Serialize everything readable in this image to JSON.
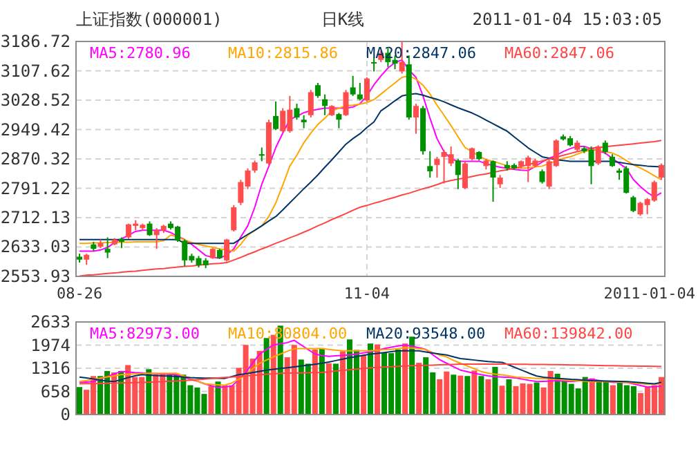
{
  "chart_data": [
    {
      "type": "candlestick",
      "title": "上证指数(000001)",
      "subtitle": "日K线",
      "annotations": [
        "2011-01-04 15:03:05"
      ],
      "categories": [
        "08-26",
        null,
        null,
        null,
        null,
        null,
        null,
        null,
        null,
        null,
        null,
        null,
        null,
        null,
        null,
        null,
        null,
        null,
        null,
        null,
        null,
        null,
        null,
        null,
        null,
        null,
        null,
        null,
        null,
        null,
        null,
        null,
        null,
        null,
        null,
        null,
        null,
        null,
        null,
        null,
        null,
        "11-04",
        null,
        null,
        null,
        null,
        null,
        null,
        null,
        null,
        null,
        null,
        null,
        null,
        null,
        null,
        null,
        null,
        null,
        null,
        null,
        null,
        null,
        null,
        null,
        null,
        null,
        null,
        null,
        null,
        null,
        null,
        null,
        null,
        null,
        null,
        null,
        null,
        null,
        null,
        null,
        null,
        null,
        "2011-01-04"
      ],
      "ylim": [
        2553.93,
        3186.72
      ],
      "yticks": [
        2553.93,
        2633.03,
        2712.13,
        2791.22,
        2870.32,
        2949.42,
        3028.52,
        3107.62,
        3186.72
      ],
      "grid": true,
      "legend": "top",
      "ohlc": [
        [
          2607,
          2615,
          2591,
          2599
        ],
        [
          2599,
          2615,
          2585,
          2612
        ],
        [
          2640,
          2647,
          2622,
          2628
        ],
        [
          2634,
          2653,
          2630,
          2644
        ],
        [
          2628,
          2659,
          2603,
          2618
        ],
        [
          2640,
          2657,
          2638,
          2653
        ],
        [
          2655,
          2659,
          2630,
          2647
        ],
        [
          2659,
          2696,
          2655,
          2694
        ],
        [
          2690,
          2705,
          2678,
          2696
        ],
        [
          2684,
          2696,
          2678,
          2693
        ],
        [
          2696,
          2702,
          2663,
          2665
        ],
        [
          2665,
          2684,
          2628,
          2678
        ],
        [
          2678,
          2693,
          2671,
          2690
        ],
        [
          2696,
          2702,
          2680,
          2684
        ],
        [
          2688,
          2690,
          2647,
          2650
        ],
        [
          2650,
          2653,
          2581,
          2597
        ],
        [
          2609,
          2615,
          2591,
          2597
        ],
        [
          2603,
          2609,
          2578,
          2584
        ],
        [
          2597,
          2603,
          2576,
          2584
        ],
        [
          2603,
          2630,
          2601,
          2628
        ],
        [
          2625,
          2628,
          2601,
          2603
        ],
        [
          2597,
          2655,
          2594,
          2653
        ],
        [
          2678,
          2746,
          2675,
          2740
        ],
        [
          2752,
          2814,
          2746,
          2808
        ],
        [
          2796,
          2845,
          2789,
          2839
        ],
        [
          2839,
          2866,
          2833,
          2861
        ],
        [
          2883,
          2901,
          2864,
          2879
        ],
        [
          2858,
          2976,
          2854,
          2969
        ],
        [
          2986,
          3025,
          2948,
          2951
        ],
        [
          2945,
          3007,
          2941,
          3000
        ],
        [
          2945,
          3040,
          2941,
          3003
        ],
        [
          3007,
          3019,
          2976,
          2982
        ],
        [
          2976,
          2988,
          2953,
          2969
        ],
        [
          2988,
          3056,
          2982,
          3050
        ],
        [
          3069,
          3075,
          3035,
          3040
        ],
        [
          3031,
          3044,
          2988,
          3013
        ],
        [
          2988,
          3015,
          2986,
          3013
        ],
        [
          2991,
          2994,
          2953,
          2976
        ],
        [
          2988,
          3056,
          2986,
          3050
        ],
        [
          3063,
          3094,
          3040,
          3044
        ],
        [
          3044,
          3075,
          3028,
          3031
        ],
        [
          3028,
          3090,
          3025,
          3087
        ],
        [
          3131,
          3143,
          3106,
          3128
        ],
        [
          3137,
          3162,
          3131,
          3156
        ],
        [
          3156,
          3168,
          3118,
          3131
        ],
        [
          3137,
          3149,
          3112,
          3127
        ],
        [
          3106,
          3186,
          3100,
          3131
        ],
        [
          3125,
          3149,
          2976,
          2982
        ],
        [
          2982,
          3019,
          2938,
          3013
        ],
        [
          3007,
          3013,
          2882,
          2891
        ],
        [
          2851,
          2891,
          2820,
          2837
        ],
        [
          2854,
          2876,
          2820,
          2870
        ],
        [
          2876,
          2895,
          2804,
          2889
        ],
        [
          2858,
          2904,
          2851,
          2883
        ],
        [
          2866,
          2870,
          2789,
          2827
        ],
        [
          2792,
          2864,
          2789,
          2858
        ],
        [
          2870,
          2901,
          2866,
          2899
        ],
        [
          2889,
          2891,
          2866,
          2870
        ],
        [
          2851,
          2870,
          2842,
          2866
        ],
        [
          2864,
          2866,
          2755,
          2820
        ],
        [
          2802,
          2827,
          2792,
          2820
        ],
        [
          2854,
          2864,
          2839,
          2845
        ],
        [
          2854,
          2858,
          2842,
          2845
        ],
        [
          2851,
          2866,
          2845,
          2864
        ],
        [
          2851,
          2879,
          2808,
          2874
        ],
        [
          2851,
          2870,
          2848,
          2866
        ],
        [
          2837,
          2842,
          2804,
          2808
        ],
        [
          2796,
          2870,
          2789,
          2864
        ],
        [
          2851,
          2923,
          2849,
          2920
        ],
        [
          2931,
          2936,
          2920,
          2923
        ],
        [
          2926,
          2932,
          2904,
          2907
        ],
        [
          2895,
          2920,
          2891,
          2914
        ],
        [
          2899,
          2904,
          2886,
          2891
        ],
        [
          2895,
          2904,
          2802,
          2851
        ],
        [
          2858,
          2907,
          2854,
          2904
        ],
        [
          2914,
          2920,
          2883,
          2889
        ],
        [
          2876,
          2883,
          2849,
          2851
        ],
        [
          2839,
          2845,
          2814,
          2833
        ],
        [
          2845,
          2851,
          2777,
          2779
        ],
        [
          2767,
          2771,
          2727,
          2730
        ],
        [
          2721,
          2755,
          2717,
          2752
        ],
        [
          2746,
          2765,
          2721,
          2762
        ],
        [
          2758,
          2812,
          2755,
          2808
        ],
        [
          2820,
          2858,
          2814,
          2854
        ]
      ],
      "colors": [
        "#009100",
        "#ff4d4d",
        "#009100",
        "#ff4d4d",
        "#009100",
        "#ff4d4d",
        "#009100",
        "#ff4d4d",
        "#ff4d4d",
        "#ff4d4d",
        "#009100",
        "#ff4d4d",
        "#ff4d4d",
        "#009100",
        "#009100",
        "#009100",
        "#009100",
        "#009100",
        "#009100",
        "#ff4d4d",
        "#009100",
        "#ff4d4d",
        "#ff4d4d",
        "#ff4d4d",
        "#ff4d4d",
        "#ff4d4d",
        "#009100",
        "#ff4d4d",
        "#009100",
        "#ff4d4d",
        "#ff4d4d",
        "#009100",
        "#009100",
        "#ff4d4d",
        "#009100",
        "#009100",
        "#ff4d4d",
        "#009100",
        "#ff4d4d",
        "#009100",
        "#009100",
        "#ff4d4d",
        "#009100",
        "#ff4d4d",
        "#009100",
        "#009100",
        "#ff4d4d",
        "#009100",
        "#ff4d4d",
        "#009100",
        "#009100",
        "#ff4d4d",
        "#ff4d4d",
        "#ff4d4d",
        "#009100",
        "#ff4d4d",
        "#ff4d4d",
        "#009100",
        "#ff4d4d",
        "#009100",
        "#ff4d4d",
        "#009100",
        "#009100",
        "#ff4d4d",
        "#ff4d4d",
        "#ff4d4d",
        "#009100",
        "#ff4d4d",
        "#ff4d4d",
        "#009100",
        "#009100",
        "#ff4d4d",
        "#009100",
        "#009100",
        "#ff4d4d",
        "#009100",
        "#009100",
        "#009100",
        "#009100",
        "#009100",
        "#ff4d4d",
        "#ff4d4d",
        "#ff4d4d",
        "#ff4d4d"
      ],
      "series": [
        {
          "name": "MA5:2780.96",
          "type": "line",
          "color": "#ff00ff",
          "values": [
            2622,
            2622,
            2622,
            2625,
            2632,
            2645,
            2655,
            2665,
            2675,
            2678,
            2678,
            2678,
            2678,
            2672,
            2662,
            2653,
            2640,
            2625,
            2610,
            2605,
            2603,
            2612,
            2628,
            2660,
            2690,
            2740,
            2802,
            2850,
            2901,
            2940,
            2976,
            2985,
            2995,
            3000,
            3004,
            3007,
            3007,
            3007,
            3007,
            3010,
            3019,
            3040,
            3070,
            3094,
            3115,
            3130,
            3137,
            3110,
            3090,
            3040,
            2980,
            2925,
            2890,
            2870,
            2864,
            2864,
            2864,
            2864,
            2858,
            2852,
            2848,
            2845,
            2842,
            2840,
            2839,
            2850,
            2862,
            2872,
            2880,
            2890,
            2898,
            2904,
            2904,
            2898,
            2892,
            2886,
            2872,
            2858,
            2845,
            2815,
            2796,
            2780,
            2768,
            2779
          ]
        },
        {
          "name": "MA10:2815.86",
          "type": "line",
          "color": "#ffa500",
          "values": [
            2643,
            2643,
            2644,
            2644,
            2645,
            2645,
            2646,
            2646,
            2647,
            2647,
            2647,
            2647,
            2650,
            2665,
            2660,
            2652,
            2645,
            2640,
            2636,
            2632,
            2628,
            2625,
            2622,
            2640,
            2665,
            2678,
            2690,
            2715,
            2752,
            2800,
            2851,
            2880,
            2914,
            2940,
            2963,
            2980,
            3000,
            3007,
            3013,
            3015,
            3018,
            3022,
            3030,
            3045,
            3060,
            3075,
            3090,
            3094,
            3085,
            3069,
            3045,
            3015,
            2988,
            2960,
            2930,
            2901,
            2890,
            2878,
            2868,
            2864,
            2858,
            2852,
            2847,
            2845,
            2846,
            2849,
            2851,
            2858,
            2865,
            2872,
            2876,
            2883,
            2890,
            2895,
            2893,
            2890,
            2886,
            2878,
            2866,
            2855,
            2846,
            2836,
            2825,
            2814
          ]
        },
        {
          "name": "MA20:2847.06",
          "type": "line",
          "color": "#003366",
          "values": [
            2653,
            2653,
            2653,
            2653,
            2653,
            2653,
            2653,
            2653,
            2653,
            2653,
            2653,
            2653,
            2653,
            2653,
            2653,
            2643,
            2643,
            2643,
            2643,
            2643,
            2643,
            2643,
            2643,
            2655,
            2667,
            2678,
            2690,
            2703,
            2715,
            2733,
            2752,
            2771,
            2790,
            2808,
            2827,
            2848,
            2868,
            2889,
            2910,
            2925,
            2938,
            2955,
            2970,
            3000,
            3013,
            3027,
            3040,
            3044,
            3046,
            3042,
            3036,
            3031,
            3024,
            3016,
            3008,
            3001,
            2994,
            2985,
            2975,
            2965,
            2955,
            2945,
            2930,
            2915,
            2900,
            2888,
            2876,
            2872,
            2868,
            2866,
            2864,
            2864,
            2864,
            2864,
            2864,
            2864,
            2864,
            2861,
            2858,
            2855,
            2853,
            2851,
            2850,
            2849
          ]
        },
        {
          "name": "MA60:2847.06",
          "type": "line",
          "color": "#ff4444",
          "values": [
            2555,
            2557,
            2558,
            2560,
            2562,
            2563,
            2565,
            2567,
            2568,
            2570,
            2572,
            2574,
            2575,
            2577,
            2579,
            2581,
            2582,
            2584,
            2586,
            2588,
            2589,
            2591,
            2598,
            2605,
            2613,
            2620,
            2628,
            2635,
            2643,
            2650,
            2658,
            2665,
            2673,
            2681,
            2690,
            2698,
            2707,
            2715,
            2723,
            2732,
            2740,
            2745,
            2751,
            2756,
            2762,
            2767,
            2773,
            2778,
            2784,
            2790,
            2795,
            2801,
            2808,
            2812,
            2816,
            2819,
            2823,
            2827,
            2830,
            2834,
            2838,
            2841,
            2845,
            2850,
            2855,
            2860,
            2865,
            2870,
            2875,
            2880,
            2885,
            2890,
            2894,
            2899,
            2901,
            2903,
            2905,
            2907,
            2909,
            2911,
            2913,
            2915,
            2917,
            2920
          ]
        }
      ]
    },
    {
      "type": "bar",
      "tick_labels": "y",
      "categories": [
        null,
        null,
        null,
        null,
        null,
        null,
        null,
        null,
        null,
        null,
        null,
        null,
        null,
        null,
        null,
        null,
        null,
        null,
        null,
        null,
        null,
        null,
        null,
        null,
        null,
        null,
        null,
        null,
        null,
        null,
        null,
        null,
        null,
        null,
        null,
        null,
        null,
        null,
        null,
        null,
        null,
        null,
        null,
        null,
        null,
        null,
        null,
        null,
        null,
        null,
        null,
        null,
        null,
        null,
        null,
        null,
        null,
        null,
        null,
        null,
        null,
        null,
        null,
        null,
        null,
        null,
        null,
        null,
        null,
        null,
        null,
        null,
        null,
        null,
        null,
        null,
        null,
        null,
        null,
        null,
        null,
        null,
        null,
        null,
        null
      ],
      "ylim": [
        0,
        2633
      ],
      "yticks": [
        0,
        658,
        1316,
        1974,
        2633
      ],
      "grid": true,
      "legend": "top",
      "series": [
        {
          "type": "bar",
          "colors": [
            "#009000",
            "#ff5050",
            "#ff5050",
            "#009000",
            "#009000",
            "#ff5050",
            "#009000",
            "#ff5050",
            "#ff5050",
            "#ff5050",
            "#009000",
            "#ff5050",
            "#ff5050",
            "#009000",
            "#009000",
            "#009000",
            "#009000",
            "#009000",
            "#009000",
            "#ff5050",
            "#009000",
            "#ff5050",
            "#ff5050",
            "#ff5050",
            "#ff5050",
            "#ff5050",
            "#ff5050",
            "#009000",
            "#ff5050",
            "#009000",
            "#ff5050",
            "#ff5050",
            "#009000",
            "#009000",
            "#ff5050",
            "#009000",
            "#ff5050",
            "#009000",
            "#ff5050",
            "#009000",
            "#009000",
            "#ff5050",
            "#009000",
            "#ff5050",
            "#009000",
            "#009000",
            "#009000",
            "#ff5050",
            "#009000",
            "#ff5050",
            "#009000",
            "#009000",
            "#ff5050",
            "#ff5050",
            "#009000",
            "#ff5050",
            "#009000",
            "#ff5050",
            "#009000",
            "#ff5050",
            "#009000",
            "#ff5050",
            "#009000",
            "#ff5050",
            "#ff5050",
            "#ff5050",
            "#009000",
            "#ff5050",
            "#ff5050",
            "#009000",
            "#009000",
            "#009000",
            "#009000",
            "#009000",
            "#ff5050",
            "#009000",
            "#009000",
            "#ff5050",
            "#009000",
            "#009000",
            "#009000",
            "#ff5050",
            "#ff5050",
            "#ff5050",
            "#ff5050"
          ],
          "values": [
            782,
            704,
            1095,
            1095,
            1238,
            1199,
            1238,
            1407,
            1068,
            1068,
            1290,
            1134,
            1173,
            1134,
            1134,
            1134,
            834,
            769,
            586,
            808,
            938,
            834,
            834,
            1329,
            1981,
            1590,
            1811,
            2176,
            2267,
            2528,
            1629,
            1981,
            1564,
            1446,
            1850,
            1889,
            1459,
            1446,
            1798,
            2137,
            1837,
            1694,
            2020,
            1994,
            1759,
            1746,
            1850,
            2020,
            2215,
            1472,
            1629,
            1199,
            1003,
            1225,
            1134,
            1108,
            1095,
            1251,
            1095,
            1003,
            1355,
            821,
            1003,
            808,
            886,
            873,
            912,
            769,
            1238,
            1160,
            1003,
            873,
            743,
            1068,
            1029,
            938,
            964,
            834,
            938,
            834,
            808,
            612,
            782,
            834,
            1068
          ]
        },
        {
          "name": "MA5:82973.00",
          "type": "line",
          "color": "#ff00ff",
          "values": [
            912,
            925,
            938,
            1010,
            1080,
            1150,
            1225,
            1210,
            1195,
            1185,
            1173,
            1163,
            1153,
            1143,
            1134,
            1070,
            1003,
            950,
            880,
            820,
            769,
            790,
            808,
            1000,
            1199,
            1460,
            1720,
            1850,
            1981,
            2010,
            2046,
            2111,
            1980,
            1850,
            1720,
            1680,
            1655,
            1670,
            1685,
            1694,
            1725,
            1755,
            1785,
            1830,
            1875,
            1915,
            1950,
            1981,
            1940,
            1900,
            1850,
            1700,
            1560,
            1459,
            1360,
            1264,
            1220,
            1175,
            1134,
            1100,
            1075,
            1068,
            1055,
            1042,
            1005,
            970,
            938,
            945,
            955,
            964,
            950,
            938,
            960,
            985,
            1003,
            970,
            940,
            912,
            912,
            912,
            870,
            825,
            782,
            795,
            808
          ]
        },
        {
          "name": "MA10:80804.00",
          "type": "line",
          "color": "#ffa500",
          "values": [
            938,
            970,
            1005,
            1035,
            1070,
            1100,
            1134,
            1145,
            1155,
            1165,
            1173,
            1173,
            1173,
            1173,
            1173,
            1100,
            1025,
            950,
            873,
            860,
            845,
            834,
            900,
            1000,
            1130,
            1300,
            1459,
            1550,
            1640,
            1720,
            1800,
            1870,
            1876,
            1876,
            1876,
            1876,
            1850,
            1830,
            1811,
            1811,
            1811,
            1811,
            1811,
            1830,
            1845,
            1850,
            1875,
            1900,
            1890,
            1870,
            1850,
            1760,
            1690,
            1640,
            1540,
            1459,
            1380,
            1300,
            1225,
            1180,
            1150,
            1130,
            1100,
            1068,
            1055,
            1040,
            1029,
            1020,
            1010,
            1003,
            985,
            970,
            960,
            950,
            938,
            938,
            938,
            935,
            925,
            915,
            900,
            880,
            860,
            865,
            873
          ]
        },
        {
          "name": "MA20:93548.00",
          "type": "line",
          "color": "#003366",
          "values": [
            1068,
            1040,
            1010,
            980,
            955,
            938,
            990,
            1050,
            1100,
            1134,
            1120,
            1110,
            1100,
            1095,
            1080,
            1065,
            1050,
            1042,
            1038,
            1035,
            1032,
            1029,
            1080,
            1134,
            1160,
            1195,
            1230,
            1264,
            1285,
            1310,
            1330,
            1355,
            1380,
            1405,
            1430,
            1459,
            1495,
            1535,
            1575,
            1616,
            1650,
            1685,
            1720,
            1740,
            1765,
            1790,
            1811,
            1811,
            1811,
            1811,
            1780,
            1750,
            1720,
            1694,
            1640,
            1590,
            1570,
            1550,
            1530,
            1510,
            1495,
            1485,
            1410,
            1329,
            1250,
            1170,
            1095,
            1060,
            1040,
            1029,
            1015,
            1000,
            990,
            975,
            964,
            960,
            955,
            950,
            945,
            938,
            925,
            910,
            890,
            873,
            912
          ]
        },
        {
          "name": "MA60:139842.00",
          "type": "line",
          "color": "#ff4444",
          "values": [
            873,
            877,
            881,
            885,
            889,
            894,
            899,
            903,
            908,
            912,
            920,
            929,
            938,
            946,
            955,
            964,
            979,
            994,
            1009,
            1024,
            1039,
            1054,
            1068,
            1083,
            1098,
            1113,
            1128,
            1143,
            1158,
            1173,
            1177,
            1181,
            1185,
            1189,
            1194,
            1199,
            1218,
            1237,
            1255,
            1274,
            1292,
            1311,
            1329,
            1339,
            1349,
            1359,
            1369,
            1379,
            1389,
            1394,
            1400,
            1407,
            1413,
            1420,
            1426,
            1433,
            1433,
            1433,
            1433,
            1433,
            1433,
            1433,
            1433,
            1431,
            1429,
            1427,
            1425,
            1423,
            1421,
            1420,
            1416,
            1412,
            1408,
            1404,
            1399,
            1394,
            1391,
            1388,
            1385,
            1382,
            1379,
            1376,
            1373,
            1370,
            1368
          ]
        }
      ]
    }
  ]
}
